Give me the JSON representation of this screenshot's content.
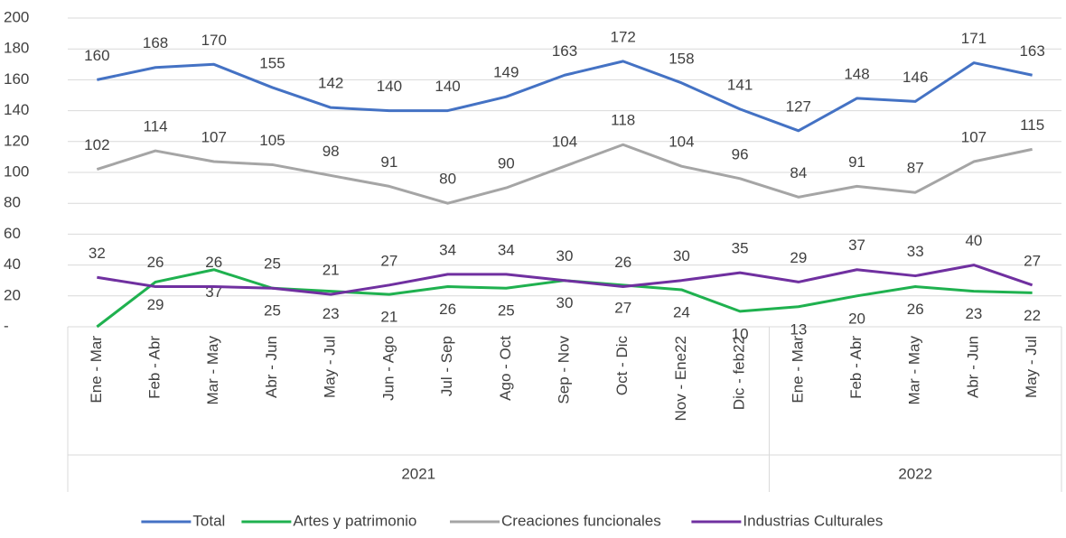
{
  "chart_data": {
    "type": "line",
    "groups": [
      {
        "label": "2021",
        "categories": [
          "Ene - Mar",
          "Feb - Abr",
          "Mar - May",
          "Abr - Jun",
          "May - Jul",
          "Jun - Ago",
          "Jul - Sep",
          "Ago - Oct",
          "Sep - Nov",
          "Oct - Dic",
          "Nov - Ene22",
          "Dic - feb22"
        ]
      },
      {
        "label": "2022",
        "categories": [
          "Ene - Mar",
          "Feb - Abr",
          "Mar - May",
          "Abr - Jun",
          "May - Jul"
        ]
      }
    ],
    "series": [
      {
        "name": "Total",
        "color": "#4472c4",
        "values": [
          160,
          168,
          170,
          155,
          142,
          140,
          140,
          149,
          163,
          172,
          158,
          141,
          127,
          148,
          146,
          171,
          163
        ]
      },
      {
        "name": "Artes y patrimonio",
        "color": "#1fb14f",
        "values": [
          0,
          29,
          37,
          25,
          23,
          21,
          26,
          25,
          30,
          27,
          24,
          10,
          13,
          20,
          26,
          23,
          22
        ],
        "value_labels": [
          null,
          "29",
          "37",
          "25",
          "23",
          "21",
          "26",
          "25",
          "30",
          "27",
          "24",
          "10",
          "13",
          "20",
          "26",
          "23",
          "22"
        ]
      },
      {
        "name": "Creaciones funcionales",
        "color": "#a5a5a5",
        "values": [
          102,
          114,
          107,
          105,
          98,
          91,
          80,
          90,
          104,
          118,
          104,
          96,
          84,
          91,
          87,
          107,
          115
        ]
      },
      {
        "name": "Industrias Culturales",
        "color": "#7030a0",
        "values": [
          32,
          26,
          26,
          25,
          21,
          27,
          34,
          34,
          30,
          26,
          30,
          35,
          29,
          37,
          33,
          40,
          27
        ]
      }
    ],
    "ylim": [
      0,
      200
    ],
    "yticks": [
      {
        "value": 0,
        "label": "-"
      },
      20,
      40,
      60,
      80,
      100,
      120,
      140,
      160,
      180,
      200
    ],
    "grid": true
  }
}
